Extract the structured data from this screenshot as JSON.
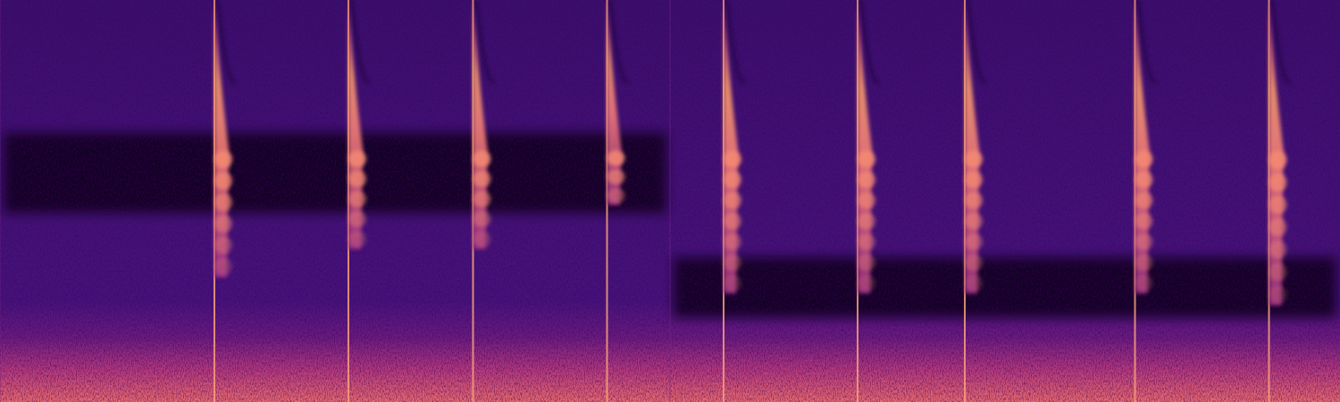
{
  "chart_data": {
    "type": "spectrogram",
    "tick_labels": false,
    "xlim": [
      0,
      100
    ],
    "ylim": [
      0,
      100
    ],
    "x": [
      16,
      26,
      35.3,
      45.3,
      54,
      64,
      72,
      84.7,
      94.7
    ],
    "values": [
      31,
      38,
      38,
      49,
      27,
      27,
      27,
      27,
      24
    ],
    "segments": [
      {
        "start": 0,
        "end": 50,
        "band": [
          47,
          67
        ]
      },
      {
        "start": 50,
        "end": 100,
        "band": [
          21,
          36
        ]
      }
    ]
  }
}
